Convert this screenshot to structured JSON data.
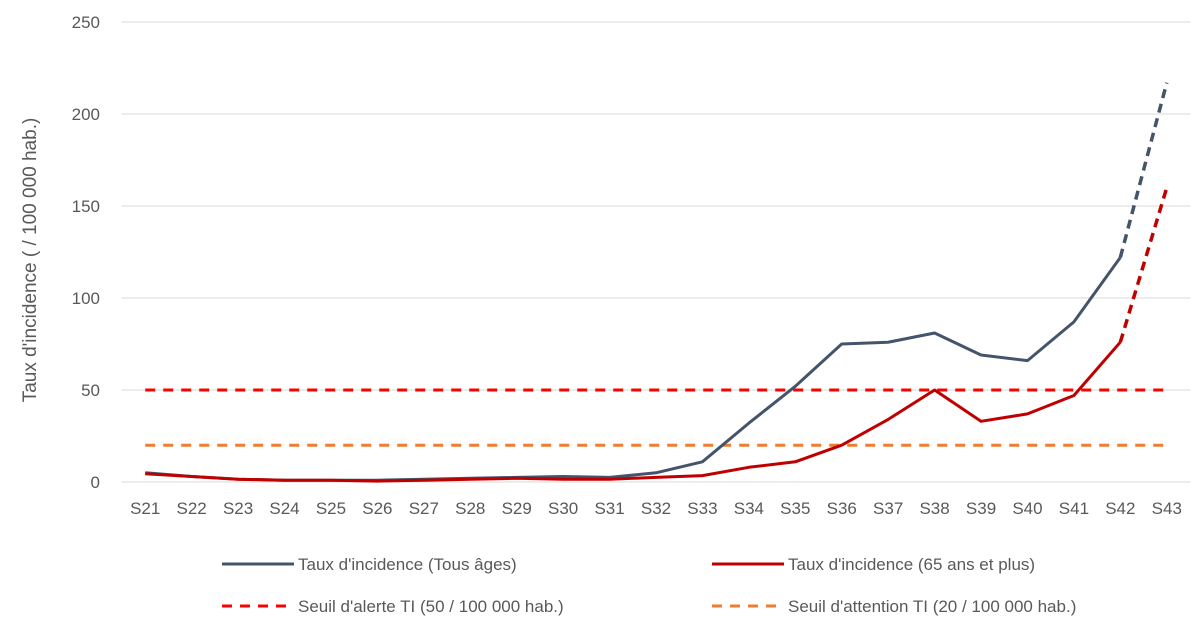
{
  "chart_data": {
    "type": "line",
    "title": "",
    "xlabel": "",
    "ylabel": "Taux d'incidence ( / 100 000 hab.)",
    "ylim": [
      0,
      250
    ],
    "yticks": [
      0,
      50,
      100,
      150,
      200,
      250
    ],
    "grid": "horizontal",
    "legend_position": "bottom",
    "categories": [
      "S21",
      "S22",
      "S23",
      "S24",
      "S25",
      "S26",
      "S27",
      "S28",
      "S29",
      "S30",
      "S31",
      "S32",
      "S33",
      "S34",
      "S35",
      "S36",
      "S37",
      "S38",
      "S39",
      "S40",
      "S41",
      "S42",
      "S43"
    ],
    "series": [
      {
        "name": "Taux d'incidence (Tous âges)",
        "color": "#44546a",
        "style": "solid",
        "dashed_from_index": 21,
        "values": [
          5,
          3,
          1.5,
          1,
          1,
          1,
          1.5,
          2,
          2.5,
          3,
          2.5,
          5,
          11,
          32,
          52,
          75,
          76,
          81,
          69,
          66,
          87,
          122,
          217
        ]
      },
      {
        "name": "Taux d'incidence (65 ans et plus)",
        "color": "#c00000",
        "style": "solid",
        "dashed_from_index": 21,
        "values": [
          4.5,
          3,
          1.5,
          1,
          1,
          0.5,
          1,
          1.5,
          2,
          1.5,
          1.5,
          2.5,
          3.5,
          8,
          11,
          20,
          34,
          50,
          33,
          37,
          47,
          76,
          160
        ]
      },
      {
        "name": "Seuil d'alerte TI (50 / 100 000 hab.)",
        "color": "#ff0000",
        "style": "dashed",
        "values": [
          50,
          50,
          50,
          50,
          50,
          50,
          50,
          50,
          50,
          50,
          50,
          50,
          50,
          50,
          50,
          50,
          50,
          50,
          50,
          50,
          50,
          50,
          50
        ]
      },
      {
        "name": "Seuil d'attention TI (20 / 100 000 hab.)",
        "color": "#ed7d31",
        "style": "dashed",
        "values": [
          20,
          20,
          20,
          20,
          20,
          20,
          20,
          20,
          20,
          20,
          20,
          20,
          20,
          20,
          20,
          20,
          20,
          20,
          20,
          20,
          20,
          20,
          20
        ]
      }
    ]
  }
}
